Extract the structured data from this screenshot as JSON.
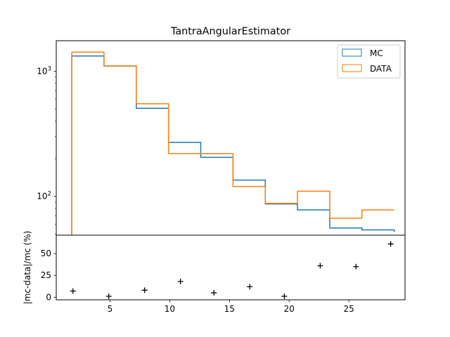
{
  "chart_data": [
    {
      "type": "step-histogram",
      "title": "TantraAngularEstimator",
      "yscale": "log",
      "xlim": [
        0.5,
        29.7
      ],
      "ylim": [
        49,
        1750
      ],
      "yticks": [
        {
          "value": 100,
          "base": "10",
          "exp": "2"
        },
        {
          "value": 1000,
          "base": "10",
          "exp": "3"
        }
      ],
      "bin_edges": [
        1.8,
        4.5,
        7.2,
        9.9,
        12.6,
        15.3,
        18.0,
        20.7,
        23.4,
        26.1,
        28.8
      ],
      "series": [
        {
          "name": "MC",
          "color": "#1f77b4",
          "values": [
            1320,
            1100,
            505,
            270,
            205,
            135,
            87,
            78,
            56,
            54,
            52
          ]
        },
        {
          "name": "DATA",
          "color": "#ff7f0e",
          "values": [
            1420,
            1100,
            550,
            220,
            220,
            120,
            88,
            110,
            67,
            78,
            78
          ]
        }
      ],
      "legend": {
        "placement": "upper right",
        "entries": [
          "MC",
          "DATA"
        ]
      }
    },
    {
      "type": "scatter",
      "marker": "+",
      "ylabel": "|mc-data|/mc (%)",
      "xlim": [
        0.5,
        29.7
      ],
      "ylim": [
        -3,
        71
      ],
      "xticks": [
        5,
        10,
        15,
        20,
        25
      ],
      "yticks": [
        0,
        25,
        50
      ],
      "x": [
        1.9,
        4.9,
        7.9,
        10.9,
        13.7,
        16.7,
        19.6,
        22.6,
        25.6,
        28.5
      ],
      "y": [
        7,
        1,
        8,
        18,
        5,
        12,
        1,
        36,
        35,
        61
      ]
    }
  ]
}
